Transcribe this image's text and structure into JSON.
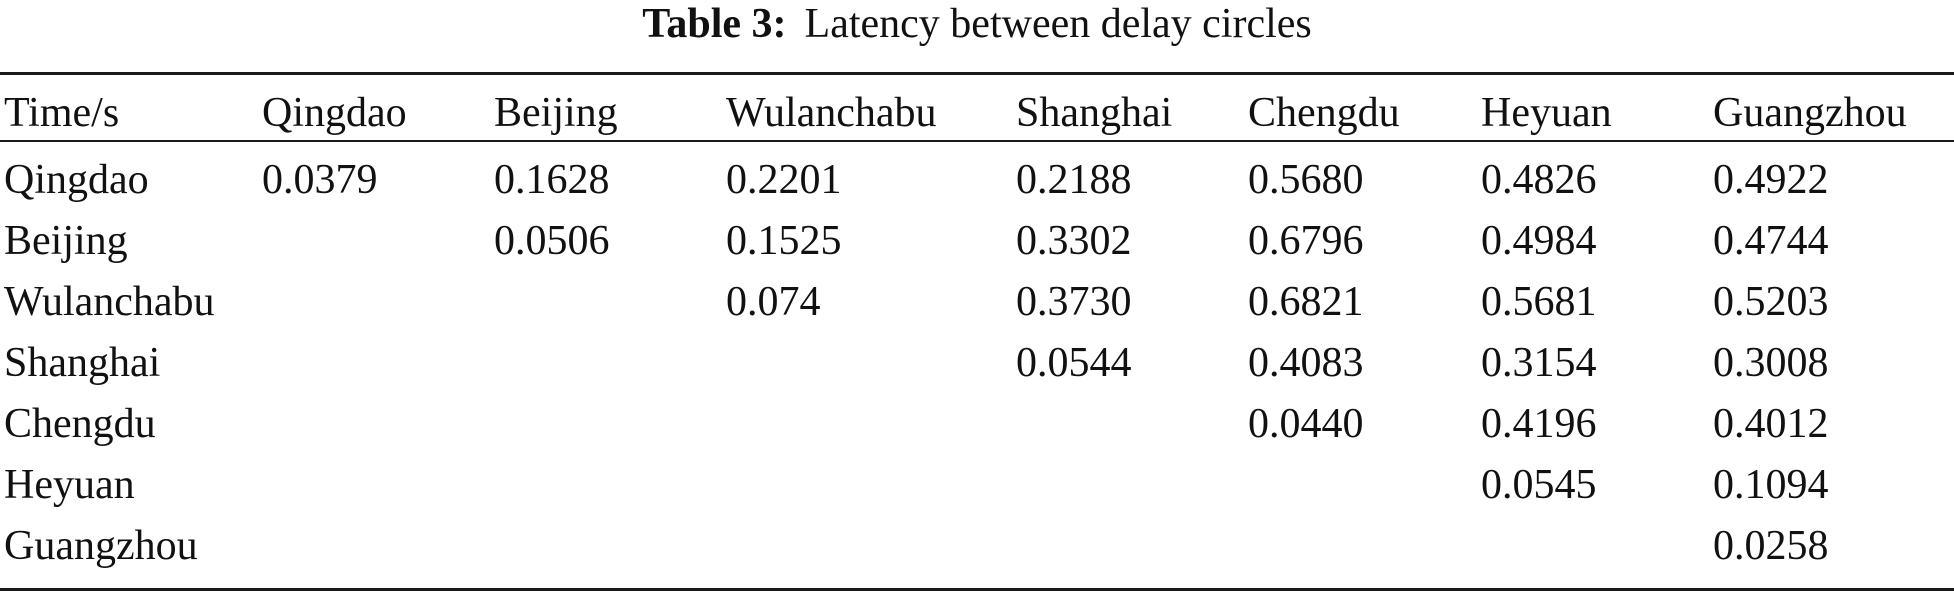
{
  "caption": {
    "label": "Table 3:",
    "text": "Latency between delay circles"
  },
  "table": {
    "corner": "Time/s",
    "columns": [
      "Qingdao",
      "Beijing",
      "Wulanchabu",
      "Shanghai",
      "Chengdu",
      "Heyuan",
      "Guangzhou"
    ],
    "rows": [
      {
        "label": "Qingdao",
        "cells": [
          "0.0379",
          "0.1628",
          "0.2201",
          "0.2188",
          "0.5680",
          "0.4826",
          "0.4922"
        ]
      },
      {
        "label": "Beijing",
        "cells": [
          "",
          "0.0506",
          "0.1525",
          "0.3302",
          "0.6796",
          "0.4984",
          "0.4744"
        ]
      },
      {
        "label": "Wulanchabu",
        "cells": [
          "",
          "",
          "0.074",
          "0.3730",
          "0.6821",
          "0.5681",
          "0.5203"
        ]
      },
      {
        "label": "Shanghai",
        "cells": [
          "",
          "",
          "",
          "0.0544",
          "0.4083",
          "0.3154",
          "0.3008"
        ]
      },
      {
        "label": "Chengdu",
        "cells": [
          "",
          "",
          "",
          "",
          "0.0440",
          "0.4196",
          "0.4012"
        ]
      },
      {
        "label": "Heyuan",
        "cells": [
          "",
          "",
          "",
          "",
          "",
          "0.0545",
          "0.1094"
        ]
      },
      {
        "label": "Guangzhou",
        "cells": [
          "",
          "",
          "",
          "",
          "",
          "",
          "0.0258"
        ]
      }
    ]
  }
}
